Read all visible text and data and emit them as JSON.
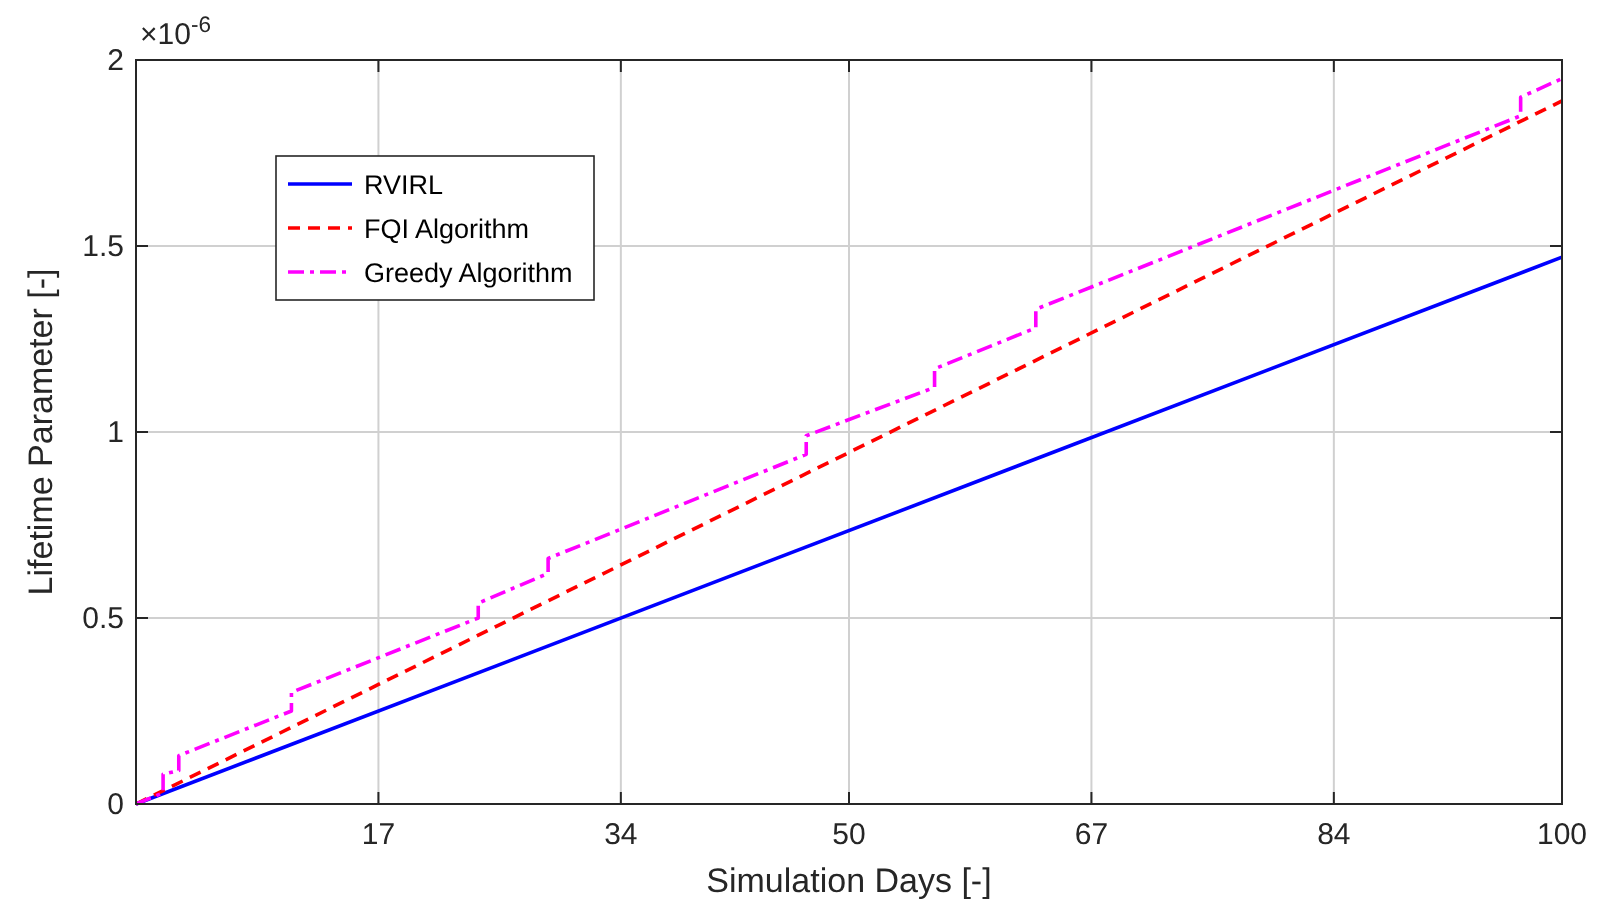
{
  "chart_data": {
    "type": "line",
    "xlabel": "Simulation Days [-]",
    "ylabel": "Lifetime Parameter [-]",
    "annotations": [
      "×10$^{-6}$"
    ],
    "xlim": [
      0,
      100
    ],
    "xticks": [
      17,
      34,
      50,
      67,
      84,
      100
    ],
    "ylim": [
      0,
      2
    ],
    "yticks": [
      0,
      0.5,
      1,
      1.5,
      2
    ],
    "grid": true,
    "legend": "top left",
    "series": [
      {
        "name": "RVIRL",
        "color": "#0000ff",
        "line_style": "solid",
        "x": [
          0,
          100
        ],
        "values": [
          0,
          1.47
        ]
      },
      {
        "name": "FQI Algorithm",
        "color": "#ff0000",
        "line_style": "dashed",
        "x": [
          0,
          100
        ],
        "values": [
          0,
          1.89
        ]
      },
      {
        "name": "Greedy Algorithm",
        "color": "#ff00ff",
        "line_style": "dashdot",
        "x": [
          0,
          1.9,
          1.9,
          3.0,
          3.0,
          10.9,
          10.9,
          24,
          24,
          28.9,
          28.9,
          47,
          47,
          56,
          56,
          63.1,
          63.1,
          97.1,
          97.1,
          100
        ],
        "values": [
          0,
          0.03,
          0.08,
          0.09,
          0.13,
          0.25,
          0.3,
          0.5,
          0.54,
          0.62,
          0.66,
          0.94,
          0.99,
          1.12,
          1.17,
          1.28,
          1.33,
          1.85,
          1.9,
          1.95
        ]
      }
    ]
  }
}
